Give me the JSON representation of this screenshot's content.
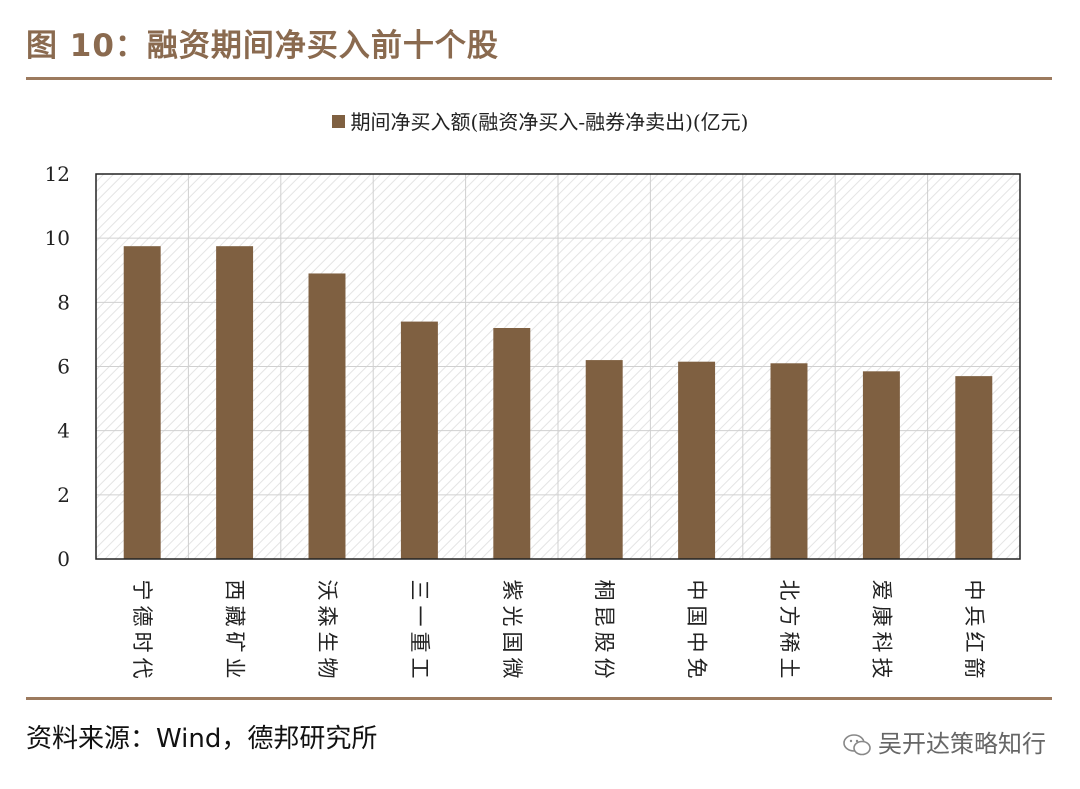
{
  "header": {
    "title": "图 10：融资期间净买入前十个股"
  },
  "footer": {
    "source": "资料来源：Wind，德邦研究所",
    "watermark": "吴开达策略知行"
  },
  "colors": {
    "bar": "#7f6041",
    "rule": "#9c7a5e",
    "title": "#8a6a4f"
  },
  "chart_data": {
    "type": "bar",
    "legend_position": "top",
    "grid": true,
    "ylim": [
      0,
      12
    ],
    "yticks": [
      0,
      2,
      4,
      6,
      8,
      10,
      12
    ],
    "categories": [
      "宁德时代",
      "西藏矿业",
      "沃森生物",
      "三一重工",
      "紫光国微",
      "桐昆股份",
      "中国中免",
      "北方稀土",
      "爱康科技",
      "中兵红箭"
    ],
    "series": [
      {
        "name": "期间净买入额(融资净买入-融券净卖出)(亿元)",
        "values": [
          9.75,
          9.75,
          8.9,
          7.4,
          7.2,
          6.2,
          6.15,
          6.1,
          5.85,
          5.7
        ]
      }
    ]
  }
}
